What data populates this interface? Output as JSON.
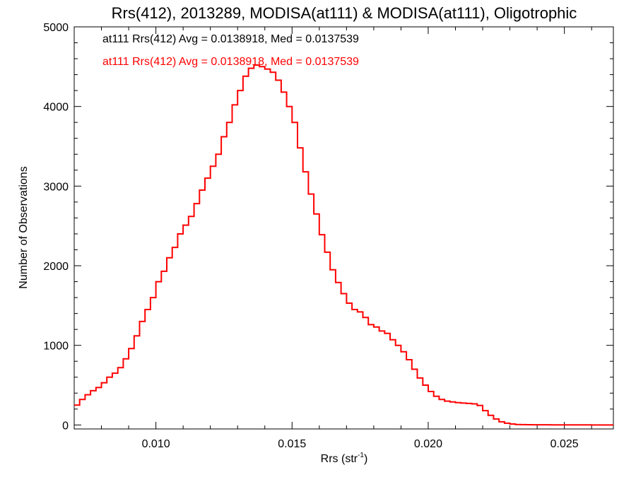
{
  "chart_data": {
    "type": "line",
    "title": "Rrs(412), 2013289, MODISA(at111) & MODISA(at111), Oligotrophic",
    "xlabel_main": "Rrs (str",
    "xlabel_sup": "-1",
    "xlabel_end": ")",
    "ylabel": "Number of Observations",
    "xlim": [
      0.007,
      0.0268
    ],
    "ylim": [
      -50,
      5000
    ],
    "xticks": [
      0.01,
      0.015,
      0.02,
      0.025
    ],
    "xtick_labels": [
      "0.010",
      "0.015",
      "0.020",
      "0.025"
    ],
    "yticks": [
      0,
      1000,
      2000,
      3000,
      4000,
      5000
    ],
    "ytick_labels": [
      "0",
      "1000",
      "2000",
      "3000",
      "4000",
      "5000"
    ],
    "grid": false,
    "annotations": [
      {
        "text": "at111 Rrs(412) Avg = 0.0138918, Med = 0.0137539",
        "color": "#000000"
      },
      {
        "text": "at111 Rrs(412) Avg = 0.0138918, Med = 0.0137539",
        "color": "#ff0000"
      }
    ],
    "series": [
      {
        "color": "#ff0000",
        "x": [
          0.007,
          0.0072,
          0.0074,
          0.0076,
          0.0078,
          0.008,
          0.0082,
          0.0084,
          0.0086,
          0.0088,
          0.009,
          0.0092,
          0.0094,
          0.0096,
          0.0098,
          0.01,
          0.0102,
          0.0104,
          0.0106,
          0.0108,
          0.011,
          0.0112,
          0.0114,
          0.0116,
          0.0118,
          0.012,
          0.0122,
          0.0124,
          0.0126,
          0.0128,
          0.013,
          0.0132,
          0.0134,
          0.0136,
          0.0138,
          0.014,
          0.0142,
          0.0144,
          0.0146,
          0.0148,
          0.015,
          0.0152,
          0.0154,
          0.0156,
          0.0158,
          0.016,
          0.0162,
          0.0164,
          0.0166,
          0.0168,
          0.017,
          0.0172,
          0.0174,
          0.0176,
          0.0178,
          0.018,
          0.0182,
          0.0184,
          0.0186,
          0.0188,
          0.019,
          0.0192,
          0.0194,
          0.0196,
          0.0198,
          0.02,
          0.0202,
          0.0204,
          0.0206,
          0.0208,
          0.021,
          0.0212,
          0.0214,
          0.0216,
          0.0218,
          0.022,
          0.0222,
          0.0224,
          0.0226,
          0.0228,
          0.023,
          0.0232,
          0.0234,
          0.0236,
          0.0238,
          0.024,
          0.0245,
          0.025,
          0.0255,
          0.026,
          0.0265,
          0.0268
        ],
        "y": [
          250,
          320,
          380,
          430,
          470,
          530,
          600,
          650,
          720,
          830,
          960,
          1120,
          1300,
          1450,
          1600,
          1800,
          1930,
          2100,
          2230,
          2400,
          2510,
          2620,
          2780,
          2950,
          3100,
          3250,
          3400,
          3620,
          3800,
          4020,
          4200,
          4380,
          4480,
          4520,
          4500,
          4470,
          4430,
          4330,
          4180,
          4000,
          3800,
          3480,
          3180,
          2900,
          2650,
          2390,
          2170,
          1950,
          1790,
          1650,
          1530,
          1450,
          1420,
          1350,
          1260,
          1230,
          1180,
          1150,
          1070,
          1000,
          920,
          820,
          700,
          590,
          500,
          420,
          360,
          320,
          300,
          290,
          280,
          275,
          270,
          265,
          245,
          180,
          120,
          75,
          40,
          22,
          12,
          6,
          4,
          3,
          2,
          2,
          1,
          1,
          1,
          0,
          0,
          0
        ]
      }
    ]
  }
}
